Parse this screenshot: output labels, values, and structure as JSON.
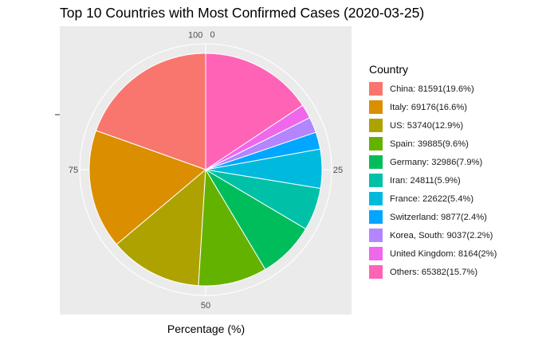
{
  "title": "Top 10 Countries with Most Confirmed Cases (2020-03-25)",
  "chart_data": {
    "type": "pie",
    "title": "Top 10 Countries with Most Confirmed Cases (2020-03-25)",
    "xlabel": "Percentage (%)",
    "legend_title": "Country",
    "legend_position": "right",
    "theta_ticks": [
      "100",
      "0",
      "25",
      "50",
      "75"
    ],
    "grid": true,
    "slices": [
      {
        "label": "China: 81591(19.6%)",
        "name": "China",
        "cases": 81591,
        "percent": 19.6,
        "color": "#F8766D"
      },
      {
        "label": "Italy: 69176(16.6%)",
        "name": "Italy",
        "cases": 69176,
        "percent": 16.6,
        "color": "#DB8E00"
      },
      {
        "label": "US: 53740(12.9%)",
        "name": "US",
        "cases": 53740,
        "percent": 12.9,
        "color": "#AEA200"
      },
      {
        "label": "Spain: 39885(9.6%)",
        "name": "Spain",
        "cases": 39885,
        "percent": 9.6,
        "color": "#64B200"
      },
      {
        "label": "Germany: 32986(7.9%)",
        "name": "Germany",
        "cases": 32986,
        "percent": 7.9,
        "color": "#00BD5C"
      },
      {
        "label": "Iran: 24811(5.9%)",
        "name": "Iran",
        "cases": 24811,
        "percent": 5.9,
        "color": "#00C1A7"
      },
      {
        "label": "France: 22622(5.4%)",
        "name": "France",
        "cases": 22622,
        "percent": 5.4,
        "color": "#00BADE"
      },
      {
        "label": "Switzerland: 9877(2.4%)",
        "name": "Switzerland",
        "cases": 9877,
        "percent": 2.4,
        "color": "#00A6FF"
      },
      {
        "label": "Korea, South: 9037(2.2%)",
        "name": "Korea, South",
        "cases": 9037,
        "percent": 2.2,
        "color": "#B385FF"
      },
      {
        "label": "United Kingdom: 8164(2%)",
        "name": "United Kingdom",
        "cases": 8164,
        "percent": 2.0,
        "color": "#EF67EB"
      },
      {
        "label": "Others: 65382(15.7%)",
        "name": "Others",
        "cases": 65382,
        "percent": 15.7,
        "color": "#FF63B6"
      }
    ]
  }
}
